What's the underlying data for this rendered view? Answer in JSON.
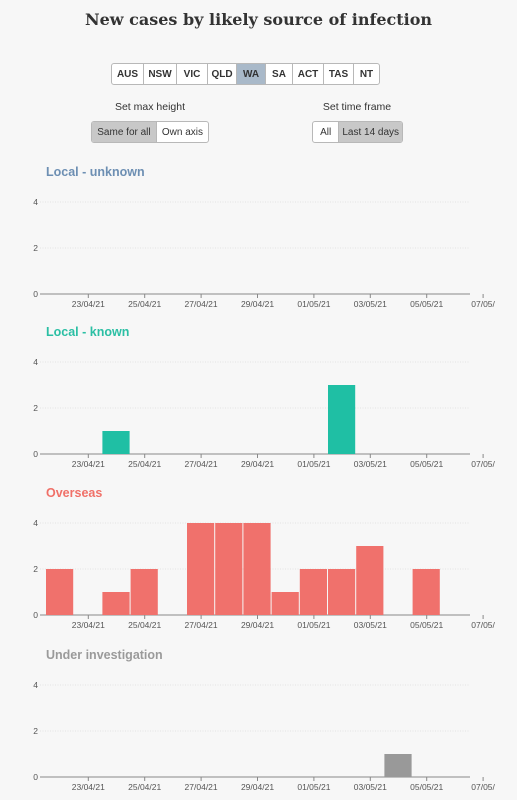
{
  "page_title": "New cases by likely source of infection",
  "states": [
    {
      "label": "AUS",
      "active": false
    },
    {
      "label": "NSW",
      "active": false
    },
    {
      "label": "VIC",
      "active": false
    },
    {
      "label": "QLD",
      "active": false
    },
    {
      "label": "WA",
      "active": true
    },
    {
      "label": "SA",
      "active": false
    },
    {
      "label": "ACT",
      "active": false
    },
    {
      "label": "TAS",
      "active": false
    },
    {
      "label": "NT",
      "active": false
    }
  ],
  "max_height": {
    "label": "Set max height",
    "options": [
      {
        "label": "Same for all",
        "active": true
      },
      {
        "label": "Own axis",
        "active": false
      }
    ]
  },
  "time_frame": {
    "label": "Set time frame",
    "options": [
      {
        "label": "All",
        "active": false
      },
      {
        "label": "Last 14 days",
        "active": true
      }
    ]
  },
  "chart_data": [
    {
      "type": "bar",
      "title": "Local - unknown",
      "color": "#6d8fb3",
      "bar_color": "#6d8fb3",
      "ylim": [
        0,
        4
      ],
      "yticks": [
        0,
        2,
        4
      ],
      "dates": [
        "22/04/21",
        "23/04/21",
        "24/04/21",
        "25/04/21",
        "26/04/21",
        "27/04/21",
        "28/04/21",
        "29/04/21",
        "30/04/21",
        "01/05/21",
        "02/05/21",
        "03/05/21",
        "04/05/21",
        "05/05/21",
        "06/05/21"
      ],
      "values": [
        0,
        0,
        0,
        0,
        0,
        0,
        0,
        0,
        0,
        0,
        0,
        0,
        0,
        0,
        0
      ],
      "xtick_labels": [
        "23/04/21",
        "25/04/21",
        "27/04/21",
        "29/04/21",
        "01/05/21",
        "03/05/21",
        "05/05/21",
        "07/05/"
      ]
    },
    {
      "type": "bar",
      "title": "Local - known",
      "color": "#2bbfa4",
      "bar_color": "#1fbfa4",
      "ylim": [
        0,
        4
      ],
      "yticks": [
        0,
        2,
        4
      ],
      "dates": [
        "22/04/21",
        "23/04/21",
        "24/04/21",
        "25/04/21",
        "26/04/21",
        "27/04/21",
        "28/04/21",
        "29/04/21",
        "30/04/21",
        "01/05/21",
        "02/05/21",
        "03/05/21",
        "04/05/21",
        "05/05/21",
        "06/05/21"
      ],
      "values": [
        0,
        0,
        1,
        0,
        0,
        0,
        0,
        0,
        0,
        0,
        3,
        0,
        0,
        0,
        0
      ],
      "xtick_labels": [
        "23/04/21",
        "25/04/21",
        "27/04/21",
        "29/04/21",
        "01/05/21",
        "03/05/21",
        "05/05/21",
        "07/05/"
      ]
    },
    {
      "type": "bar",
      "title": "Overseas",
      "color": "#f07068",
      "bar_color": "#f0716c",
      "ylim": [
        0,
        4
      ],
      "yticks": [
        0,
        2,
        4
      ],
      "dates": [
        "22/04/21",
        "23/04/21",
        "24/04/21",
        "25/04/21",
        "26/04/21",
        "27/04/21",
        "28/04/21",
        "29/04/21",
        "30/04/21",
        "01/05/21",
        "02/05/21",
        "03/05/21",
        "04/05/21",
        "05/05/21",
        "06/05/21"
      ],
      "values": [
        2,
        0,
        1,
        2,
        0,
        4,
        4,
        4,
        1,
        2,
        2,
        3,
        0,
        2,
        0
      ],
      "xtick_labels": [
        "23/04/21",
        "25/04/21",
        "27/04/21",
        "29/04/21",
        "01/05/21",
        "03/05/21",
        "05/05/21",
        "07/05/"
      ]
    },
    {
      "type": "bar",
      "title": "Under investigation",
      "color": "#9a9a9a",
      "bar_color": "#999999",
      "ylim": [
        0,
        4
      ],
      "yticks": [
        0,
        2,
        4
      ],
      "dates": [
        "22/04/21",
        "23/04/21",
        "24/04/21",
        "25/04/21",
        "26/04/21",
        "27/04/21",
        "28/04/21",
        "29/04/21",
        "30/04/21",
        "01/05/21",
        "02/05/21",
        "03/05/21",
        "04/05/21",
        "05/05/21",
        "06/05/21"
      ],
      "values": [
        0,
        0,
        0,
        0,
        0,
        0,
        0,
        0,
        0,
        0,
        0,
        0,
        1,
        0,
        0
      ],
      "xtick_labels": [
        "23/04/21",
        "25/04/21",
        "27/04/21",
        "29/04/21",
        "01/05/21",
        "03/05/21",
        "05/05/21",
        "07/05/"
      ]
    }
  ]
}
